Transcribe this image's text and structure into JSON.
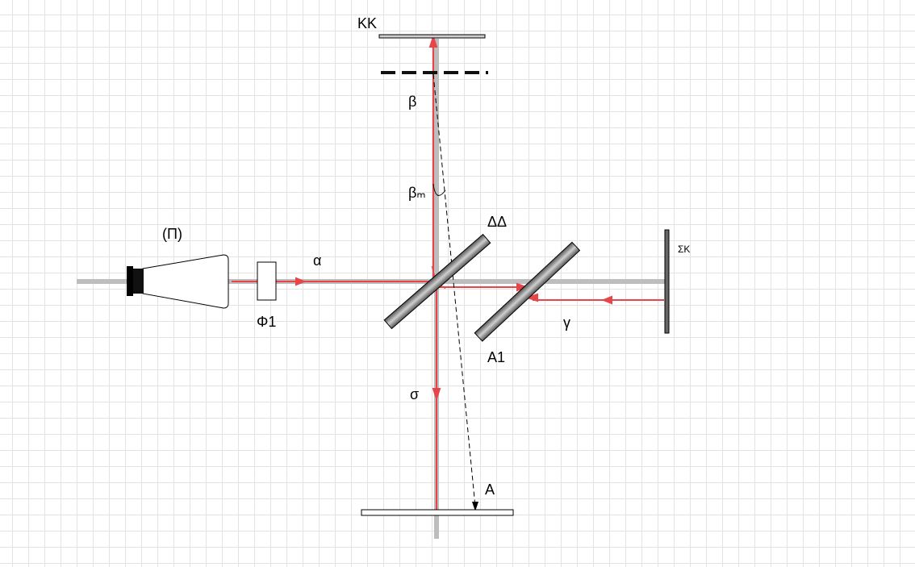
{
  "labels": {
    "kk": "KK",
    "beta": "β",
    "beta_m": "βₘ",
    "delta": "ΔΔ",
    "sigma_k": "ΣΚ",
    "pi": "(Π)",
    "alpha": "α",
    "phi1": "Φ1",
    "gamma": "γ",
    "a1": "Α1",
    "sigma": "σ",
    "a": "Α"
  },
  "colors": {
    "beam": "#e8454b",
    "axis": "#bdbdbd",
    "plate_dark": "#555555",
    "plate_light": "#cfcfcf",
    "grid": "#e3e3e3"
  },
  "icons": {
    "source": "lamp-source-icon",
    "arrow": "arrowhead-icon"
  }
}
